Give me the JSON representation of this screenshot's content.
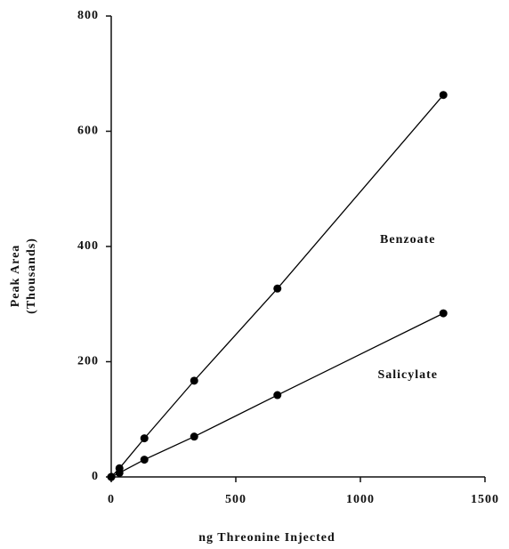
{
  "chart_data": {
    "type": "scatter",
    "x_label": "ng Threonine Injected",
    "y_label": [
      "Peak Area",
      "(Thousands)"
    ],
    "x": [
      0,
      33,
      133,
      333,
      667,
      1333
    ],
    "series": [
      {
        "name": "Benzoate",
        "color": "#000000",
        "values": [
          0,
          15,
          67,
          167,
          327,
          663
        ]
      },
      {
        "name": "Salicylate",
        "color": "#000000",
        "values": [
          0,
          7,
          30,
          70,
          142,
          284
        ]
      }
    ],
    "xlim": [
      0,
      1500
    ],
    "xticks": [
      0,
      500,
      1000,
      1500
    ],
    "ylim": [
      0,
      800
    ],
    "yticks": [
      0,
      200,
      400,
      600,
      800
    ],
    "grid": false
  }
}
